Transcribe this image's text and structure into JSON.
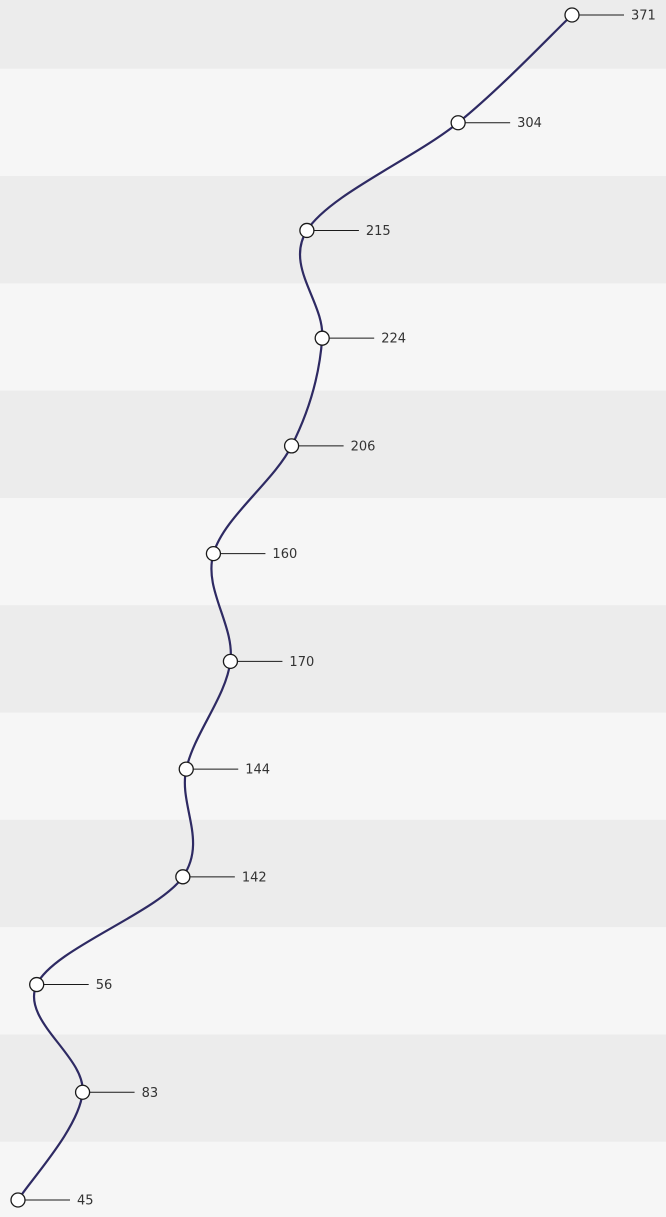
{
  "chart_data": {
    "type": "line",
    "orientation": "vertical",
    "values": [
      371,
      304,
      215,
      224,
      206,
      160,
      170,
      144,
      142,
      56,
      83,
      45
    ],
    "labels": [
      "371",
      "304",
      "215",
      "224",
      "206",
      "160",
      "170",
      "144",
      "142",
      "56",
      "83",
      "45"
    ],
    "title": "",
    "xlabel": "",
    "ylabel": "",
    "grid": "alternating horizontal bands",
    "legend": "none",
    "line_color": "#2e2a63",
    "marker_fill": "#ffffff",
    "marker_stroke": "#1a1a1a",
    "band_colors": [
      "#ececec",
      "#f6f6f6"
    ]
  }
}
